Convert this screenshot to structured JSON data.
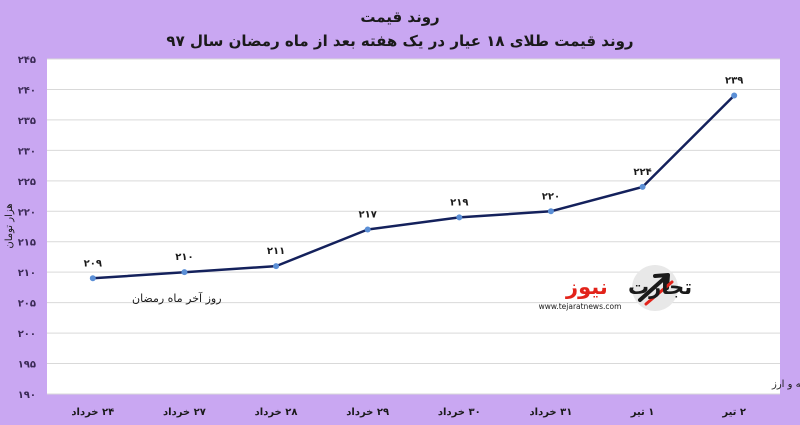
{
  "chart_data": {
    "type": "line",
    "title": "روند قیمت",
    "subtitle": "روند قیمت طلای ۱۸ عیار در یک هفته بعد از ماه رمضان سال ۹۷",
    "ylabel": "هزار تومان",
    "ylim": [
      190,
      245
    ],
    "yticks": [
      190,
      195,
      200,
      205,
      210,
      215,
      220,
      225,
      230,
      235,
      240,
      245
    ],
    "ytick_labels": [
      "۱۹۰",
      "۱۹۵",
      "۲۰۰",
      "۲۰۵",
      "۲۱۰",
      "۲۱۵",
      "۲۲۰",
      "۲۲۵",
      "۲۳۰",
      "۲۳۵",
      "۲۴۰",
      "۲۴۵"
    ],
    "categories": [
      "۲۴ خرداد",
      "۲۷ خرداد",
      "۲۸ خرداد",
      "۲۹ خرداد",
      "۳۰ خرداد",
      "۳۱ خرداد",
      "۱ تیر",
      "۲ تیر"
    ],
    "values": [
      209,
      210,
      211,
      217,
      219,
      220,
      224,
      239
    ],
    "value_labels": [
      "۲۰۹",
      "۲۱۰",
      "۲۱۱",
      "۲۱۷",
      "۲۱۹",
      "۲۲۰",
      "۲۲۴",
      "۲۳۹"
    ],
    "annotation": "روز آخر ماه رمضان",
    "grid": true,
    "line_color": "#14215c",
    "marker_color": "#5b8fd6"
  },
  "source": "منبع: شبکه اطلاع‌رسانی طلا، سکه و ارز",
  "logo": {
    "name": "تجارت نیوز",
    "part1": "تجارت",
    "part2": "نیوز",
    "url": "www.tejaratnews.com",
    "accent": "#e2231a"
  }
}
